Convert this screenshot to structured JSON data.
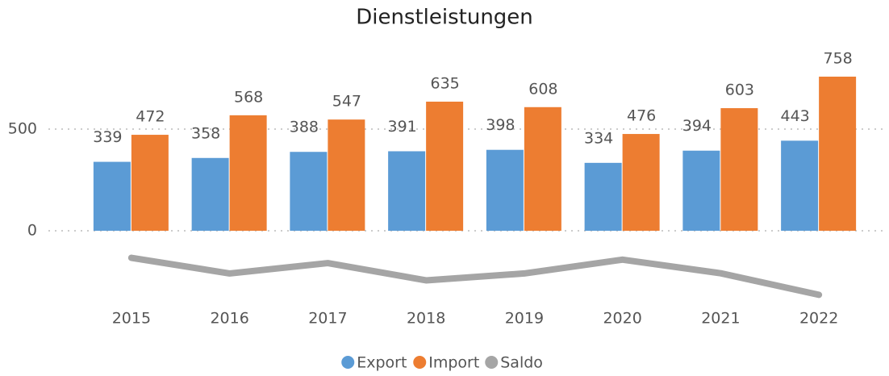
{
  "chart_data": {
    "type": "bar",
    "title": "Dienstleistungen",
    "categories": [
      "2015",
      "2016",
      "2017",
      "2018",
      "2019",
      "2020",
      "2021",
      "2022"
    ],
    "series": [
      {
        "name": "Export",
        "color": "#5b9bd5",
        "type": "bar",
        "values": [
          339,
          358,
          388,
          391,
          398,
          334,
          394,
          443
        ]
      },
      {
        "name": "Import",
        "color": "#ed7d31",
        "type": "bar",
        "values": [
          472,
          568,
          547,
          635,
          608,
          476,
          603,
          758
        ]
      },
      {
        "name": "Saldo",
        "color": "#a5a5a5",
        "type": "line",
        "values": [
          -133,
          -210,
          -159,
          -244,
          -210,
          -142,
          -209,
          -315
        ]
      }
    ],
    "ylim": [
      -350,
      800
    ],
    "yticks": [
      0,
      500
    ],
    "grid": true,
    "legend": "bottom"
  }
}
